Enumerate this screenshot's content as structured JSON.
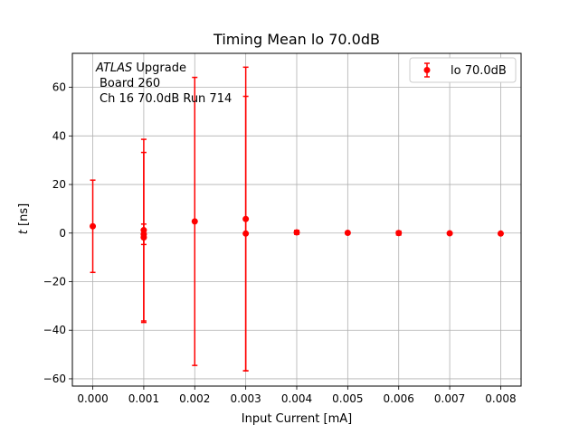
{
  "chart_data": {
    "type": "scatter",
    "title": "Timing Mean lo 70.0dB",
    "xlabel": "Input Current [mA]",
    "ylabel": "t [ns]",
    "xlim": [
      -0.0004,
      0.0084
    ],
    "ylim": [
      -63,
      74
    ],
    "xticks": [
      "0.000",
      "0.001",
      "0.002",
      "0.003",
      "0.004",
      "0.005",
      "0.006",
      "0.007",
      "0.008"
    ],
    "yticks": [
      -60,
      -40,
      -20,
      0,
      20,
      40,
      60
    ],
    "grid": true,
    "legend": {
      "placement": "top-right",
      "label": "lo 70.0dB"
    },
    "annotation": {
      "line1_italic": "ATLAS",
      "line1_rest": " Upgrade",
      "line2": "Board 260",
      "line3": "Ch 16 70.0dB  Run 714"
    },
    "color": "#ff0000",
    "series": [
      {
        "name": "lo 70.0dB",
        "points": [
          {
            "x": 0.0,
            "y": 2.8,
            "err": 19.0
          },
          {
            "x": 0.001,
            "y": 1.2,
            "err": 37.4
          },
          {
            "x": 0.001,
            "y": -0.5,
            "err": 4.2
          },
          {
            "x": 0.001,
            "y": -1.8,
            "err": 35.0
          },
          {
            "x": 0.002,
            "y": 4.8,
            "err": 59.3
          },
          {
            "x": 0.003,
            "y": 5.8,
            "err": 62.5
          },
          {
            "x": 0.003,
            "y": -0.2,
            "err": 56.5
          },
          {
            "x": 0.004,
            "y": 0.3,
            "err": 0.8
          },
          {
            "x": 0.005,
            "y": 0.1,
            "err": 0.4
          },
          {
            "x": 0.006,
            "y": 0.0,
            "err": 0.8
          },
          {
            "x": 0.007,
            "y": -0.1,
            "err": 0.3
          },
          {
            "x": 0.008,
            "y": -0.2,
            "err": 0.3
          }
        ]
      }
    ]
  }
}
